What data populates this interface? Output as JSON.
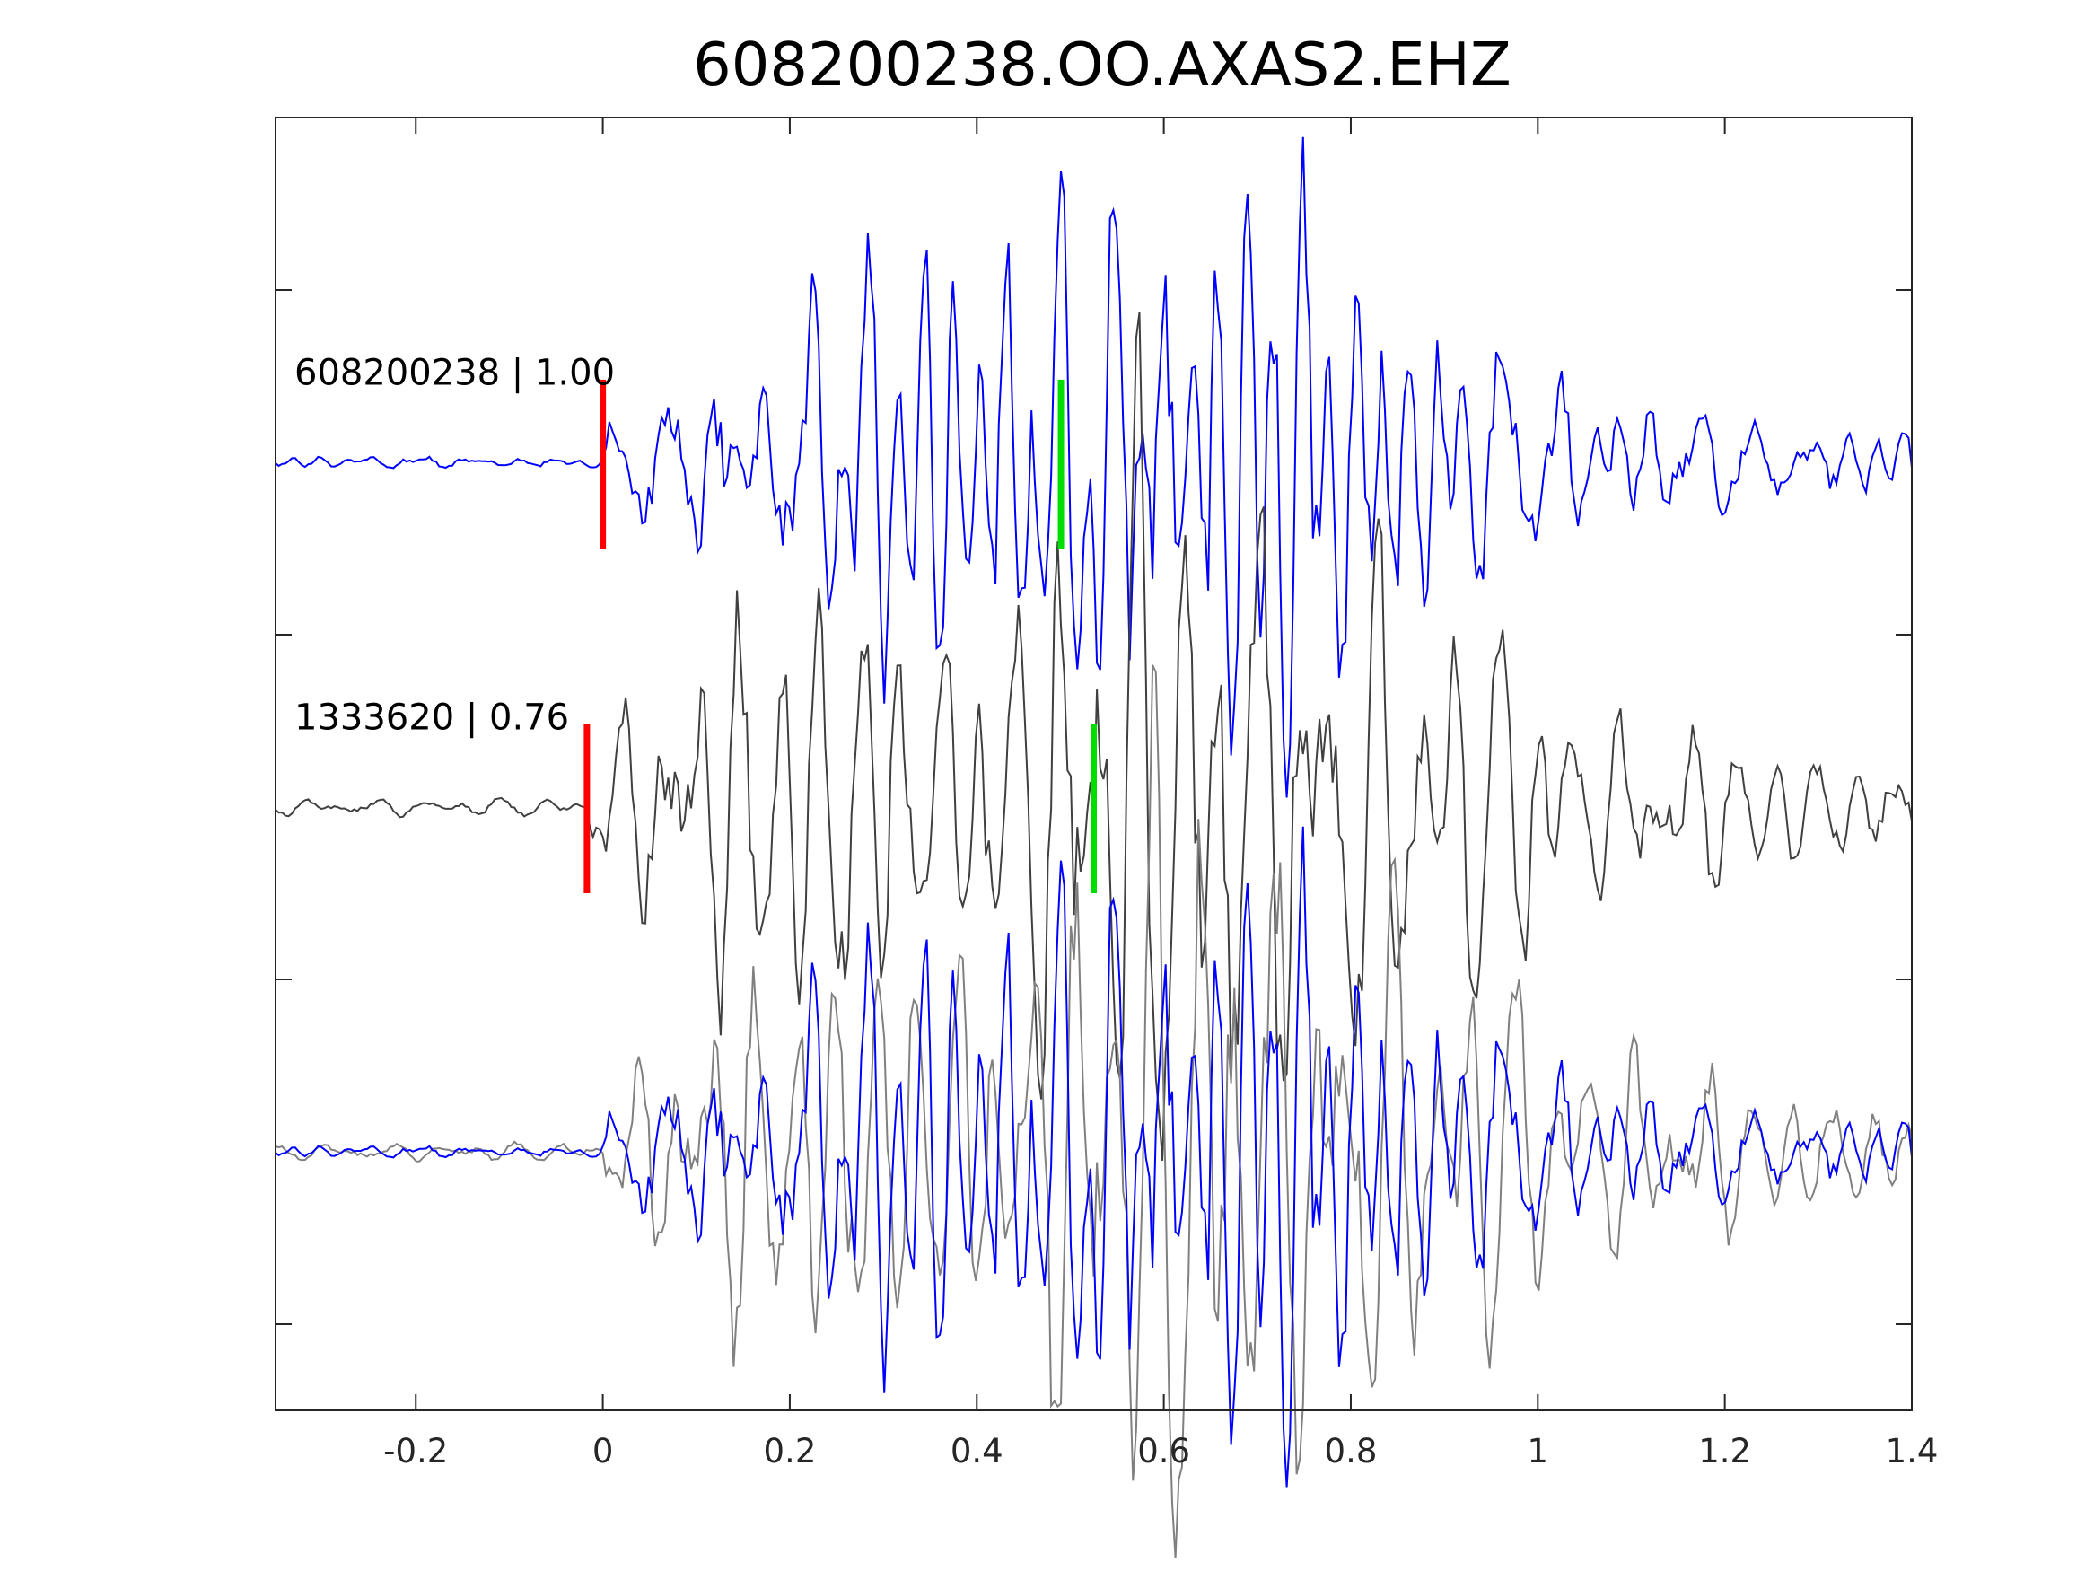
{
  "chart_data": {
    "type": "line",
    "title": "608200238.OO.AXAS2.EHZ",
    "xlabel": "",
    "ylabel": "",
    "xlim": [
      -0.35,
      1.4
    ],
    "ylim": [
      0,
      3.75
    ],
    "x_ticks": [
      -0.2,
      0,
      0.2,
      0.4,
      0.6,
      0.8,
      1,
      1.2,
      1.4
    ],
    "x_tick_labels": [
      "-0.2",
      "0",
      "0.2",
      "0.4",
      "0.6",
      "0.8",
      "1",
      "1.2",
      "1.4"
    ],
    "y_ticks": [
      0.25,
      1.25,
      2.25,
      3.25
    ],
    "y_tick_labels": [],
    "grid": false,
    "panels": [
      {
        "label": "608200238 | 1.00",
        "baseline": 2.75,
        "traces": [
          {
            "color": "#0000ff",
            "waveform": "event_608200238",
            "amp": 0.42,
            "phase": 0.0,
            "t0": 0.0
          }
        ],
        "p_pick": 0.0,
        "s_pick": 0.49
      },
      {
        "label": "1333620 | 0.76",
        "baseline": 1.75,
        "traces": [
          {
            "color": "#404040",
            "waveform": "event_1333620",
            "amp": 0.46,
            "phase": 1.3,
            "t0": -0.017
          }
        ],
        "p_pick": -0.017,
        "s_pick": 0.525
      },
      {
        "label": "",
        "baseline": 0.75,
        "traces": [
          {
            "color": "#808080",
            "waveform": "event_1333620",
            "amp": 0.46,
            "phase": 1.3,
            "t0": 0.0
          },
          {
            "color": "#0000ff",
            "waveform": "event_608200238",
            "amp": 0.42,
            "phase": 0.0,
            "t0": 0.0
          }
        ],
        "p_pick": null,
        "s_pick": null
      }
    ],
    "pick_colors": {
      "p": "#ff0000",
      "s": "#00dd00"
    }
  }
}
